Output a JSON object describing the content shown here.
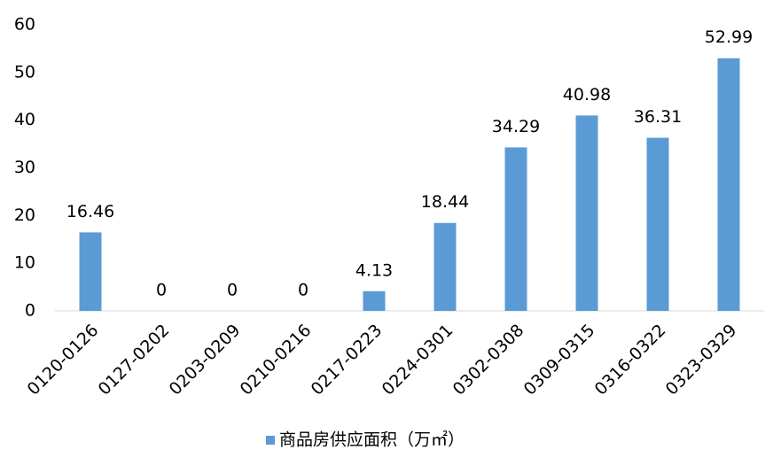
{
  "chart_data": {
    "type": "bar",
    "categories": [
      "0120-0126",
      "0127-0202",
      "0203-0209",
      "0210-0216",
      "0217-0223",
      "0224-0301",
      "0302-0308",
      "0309-0315",
      "0316-0322",
      "0323-0329"
    ],
    "series": [
      {
        "name": "商品房供应面积（万㎡）",
        "color": "#5b9bd5",
        "values": [
          16.46,
          0,
          0,
          0,
          4.13,
          18.44,
          34.29,
          40.98,
          36.31,
          52.99
        ]
      }
    ],
    "ylim": [
      0,
      60
    ],
    "yticks": [
      0,
      10,
      20,
      30,
      40,
      50,
      60
    ],
    "grid": false,
    "legend": "bottom",
    "data_labels": true
  }
}
